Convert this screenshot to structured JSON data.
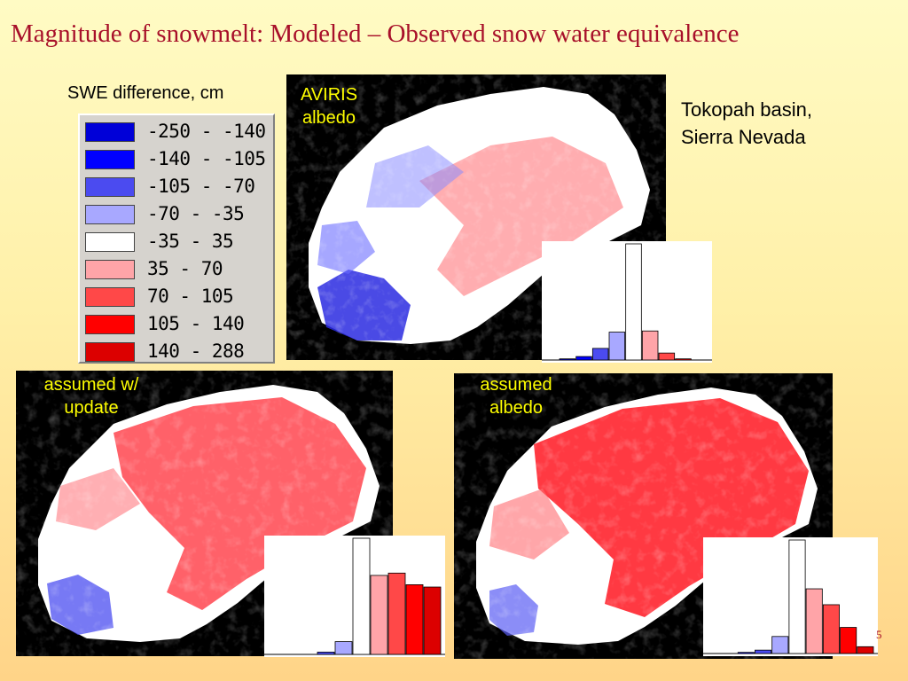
{
  "title": "Magnitude of snowmelt: Modeled – Observed snow water equivalence",
  "note": {
    "line1": "Tokopah basin,",
    "line2": "Sierra Nevada"
  },
  "page_number": "5",
  "legend": {
    "title": "SWE difference, cm",
    "items": [
      {
        "label": "-250 - -140",
        "color": "#0000d8"
      },
      {
        "label": "-140 - -105",
        "color": "#0000ff"
      },
      {
        "label": "-105 - -70",
        "color": "#4b4bf0"
      },
      {
        "label": "-70 - -35",
        "color": "#a8a8ff"
      },
      {
        "label": "-35 - 35",
        "color": "#ffffff"
      },
      {
        "label": "35 - 70",
        "color": "#ffa4a8"
      },
      {
        "label": "70 - 105",
        "color": "#ff4848"
      },
      {
        "label": "105 - 140",
        "color": "#ff0000"
      },
      {
        "label": "140 - 288",
        "color": "#dc0000"
      }
    ]
  },
  "panels": [
    {
      "id": "aviris",
      "line1": "AVIRIS",
      "line2": "albedo"
    },
    {
      "id": "update",
      "line1": "assumed w/",
      "line2": "update"
    },
    {
      "id": "assumed",
      "line1": "assumed",
      "line2": "albedo"
    }
  ],
  "chart_data": [
    {
      "type": "bar",
      "panel": "AVIRIS albedo",
      "categories": [
        "-250 - -140",
        "-140 - -105",
        "-105 - -70",
        "-70 - -35",
        "-35 - 35",
        "35 - 70",
        "70 - 105",
        "105 - 140",
        "140 - 288"
      ],
      "values": [
        1,
        3,
        10,
        24,
        100,
        25,
        6,
        1,
        0
      ]
    },
    {
      "type": "bar",
      "panel": "assumed w/ update",
      "categories": [
        "-250 - -140",
        "-140 - -105",
        "-105 - -70",
        "-70 - -35",
        "-35 - 35",
        "35 - 70",
        "70 - 105",
        "105 - 140",
        "140 - 288"
      ],
      "values": [
        0,
        0,
        2,
        11,
        100,
        68,
        70,
        60,
        58
      ]
    },
    {
      "type": "bar",
      "panel": "assumed albedo",
      "categories": [
        "-250 - -140",
        "-140 - -105",
        "-105 - -70",
        "-70 - -35",
        "-35 - 35",
        "35 - 70",
        "70 - 105",
        "105 - 140",
        "140 - 288"
      ],
      "values": [
        0,
        1,
        3,
        15,
        100,
        57,
        43,
        23,
        6
      ]
    }
  ]
}
